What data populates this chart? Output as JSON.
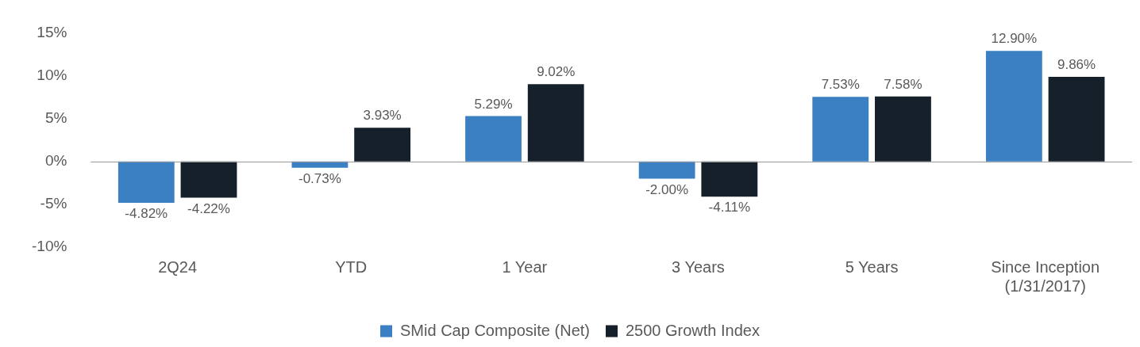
{
  "chart_data": {
    "type": "bar",
    "categories": [
      "2Q24",
      "YTD",
      "1 Year",
      "3 Years",
      "5 Years",
      "Since Inception (1/31/2017)"
    ],
    "series": [
      {
        "name": "SMid Cap Composite (Net)",
        "color": "#3b80c3",
        "values": [
          -4.82,
          -0.73,
          5.29,
          -2.0,
          7.53,
          12.9
        ],
        "value_labels": [
          "-4.82%",
          "-0.73%",
          "5.29%",
          "-2.00%",
          "7.53%",
          "12.90%"
        ]
      },
      {
        "name": "2500 Growth Index",
        "color": "#16202a",
        "values": [
          -4.22,
          3.93,
          9.02,
          -4.11,
          7.58,
          9.86
        ],
        "value_labels": [
          "-4.22%",
          "3.93%",
          "9.02%",
          "-4.11%",
          "7.58%",
          "9.86%"
        ]
      }
    ],
    "ylim": [
      -10,
      15
    ],
    "yticks": [
      {
        "value": -10,
        "label": "-10%"
      },
      {
        "value": -5,
        "label": "-5%"
      },
      {
        "value": 0,
        "label": "0%"
      },
      {
        "value": 5,
        "label": "5%"
      },
      {
        "value": 10,
        "label": "10%"
      },
      {
        "value": 15,
        "label": "15%"
      }
    ],
    "ref_lines": [
      {
        "axis": "y",
        "value": 0,
        "color": "#999999"
      }
    ],
    "grid": false,
    "legend": "bottom"
  }
}
